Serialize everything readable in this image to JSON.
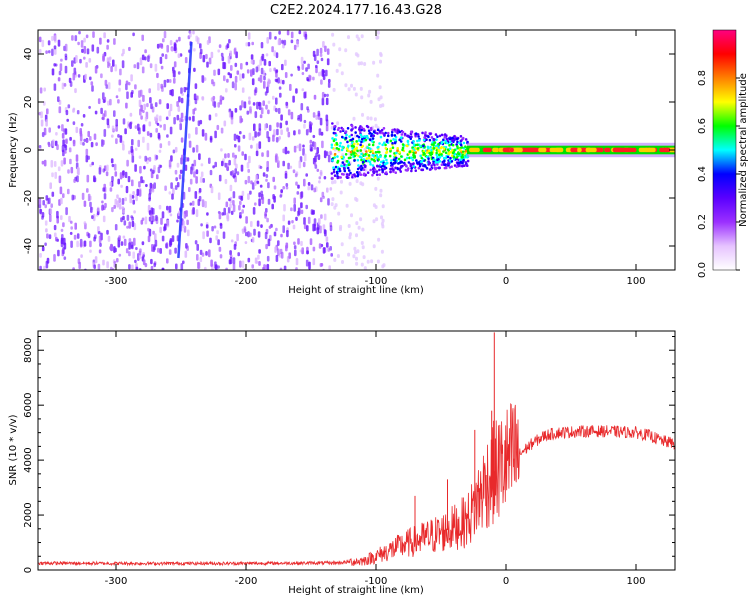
{
  "title": "C2E2.2024.177.16.43.G28",
  "chart_data": [
    {
      "type": "heatmap",
      "xlabel": "Height of straight line (km)",
      "ylabel": "Frequency (Hz)",
      "xlim": [
        -360,
        130
      ],
      "ylim": [
        -50,
        50
      ],
      "x_ticks": [
        -300,
        -200,
        -100,
        0,
        100
      ],
      "y_ticks": [
        40,
        20,
        0,
        -20,
        -40
      ],
      "colorbar": {
        "label": "Normalized spectral amplitude",
        "range": [
          0,
          1
        ],
        "ticks": [
          "0.0",
          "0.2",
          "0.4",
          "0.6",
          "0.8"
        ],
        "colors": [
          "#ffffff",
          "#e6c3ff",
          "#9b30ff",
          "#5a00ff",
          "#0000ff",
          "#00ffff",
          "#00ff00",
          "#ffff00",
          "#ff8000",
          "#ff0000",
          "#ff0080"
        ]
      },
      "grid": false,
      "regions": [
        {
          "x_range": [
            -360,
            -135
          ],
          "freq_range": [
            -50,
            50
          ],
          "amplitude": 0.08,
          "description_level": "broadband noise"
        },
        {
          "x_range": [
            -135,
            -30
          ],
          "freq_range": [
            -12,
            12
          ],
          "amplitude": 0.35
        },
        {
          "x_range": [
            -30,
            130
          ],
          "freq_range": [
            -2,
            2
          ],
          "amplitude": 0.95
        }
      ],
      "streaks": [
        {
          "x_range": [
            -252,
            -242
          ],
          "freq_range": [
            -45,
            45
          ]
        }
      ]
    },
    {
      "type": "line",
      "xlabel": "Height of straight line (km)",
      "ylabel": "SNR (10 * v/v)",
      "xlim": [
        -360,
        130
      ],
      "ylim": [
        0,
        8700
      ],
      "x_ticks": [
        -300,
        -200,
        -100,
        0,
        100
      ],
      "y_ticks": [
        0,
        2000,
        4000,
        6000,
        8000
      ],
      "grid": false,
      "series": [
        {
          "color": "#e8292b",
          "x": [
            -360,
            -300,
            -200,
            -130,
            -110,
            -100,
            -90,
            -80,
            -70,
            -60,
            -50,
            -40,
            -30,
            -25,
            -20,
            -15,
            -10,
            -5,
            0,
            10,
            20,
            30,
            40,
            60,
            80,
            100,
            110,
            120,
            130
          ],
          "y": [
            250,
            240,
            240,
            260,
            330,
            500,
            700,
            900,
            1050,
            1200,
            1350,
            1550,
            1800,
            2200,
            2700,
            3200,
            3500,
            3700,
            3900,
            4200,
            4600,
            4900,
            5000,
            5050,
            5050,
            5000,
            4900,
            4700,
            4600
          ]
        }
      ],
      "spikes": [
        {
          "x": -9,
          "y": 8650
        },
        {
          "x": -11,
          "y": 5800
        },
        {
          "x": -24,
          "y": 5100
        },
        {
          "x": -45,
          "y": 3300
        },
        {
          "x": -70,
          "y": 2700
        }
      ]
    }
  ]
}
